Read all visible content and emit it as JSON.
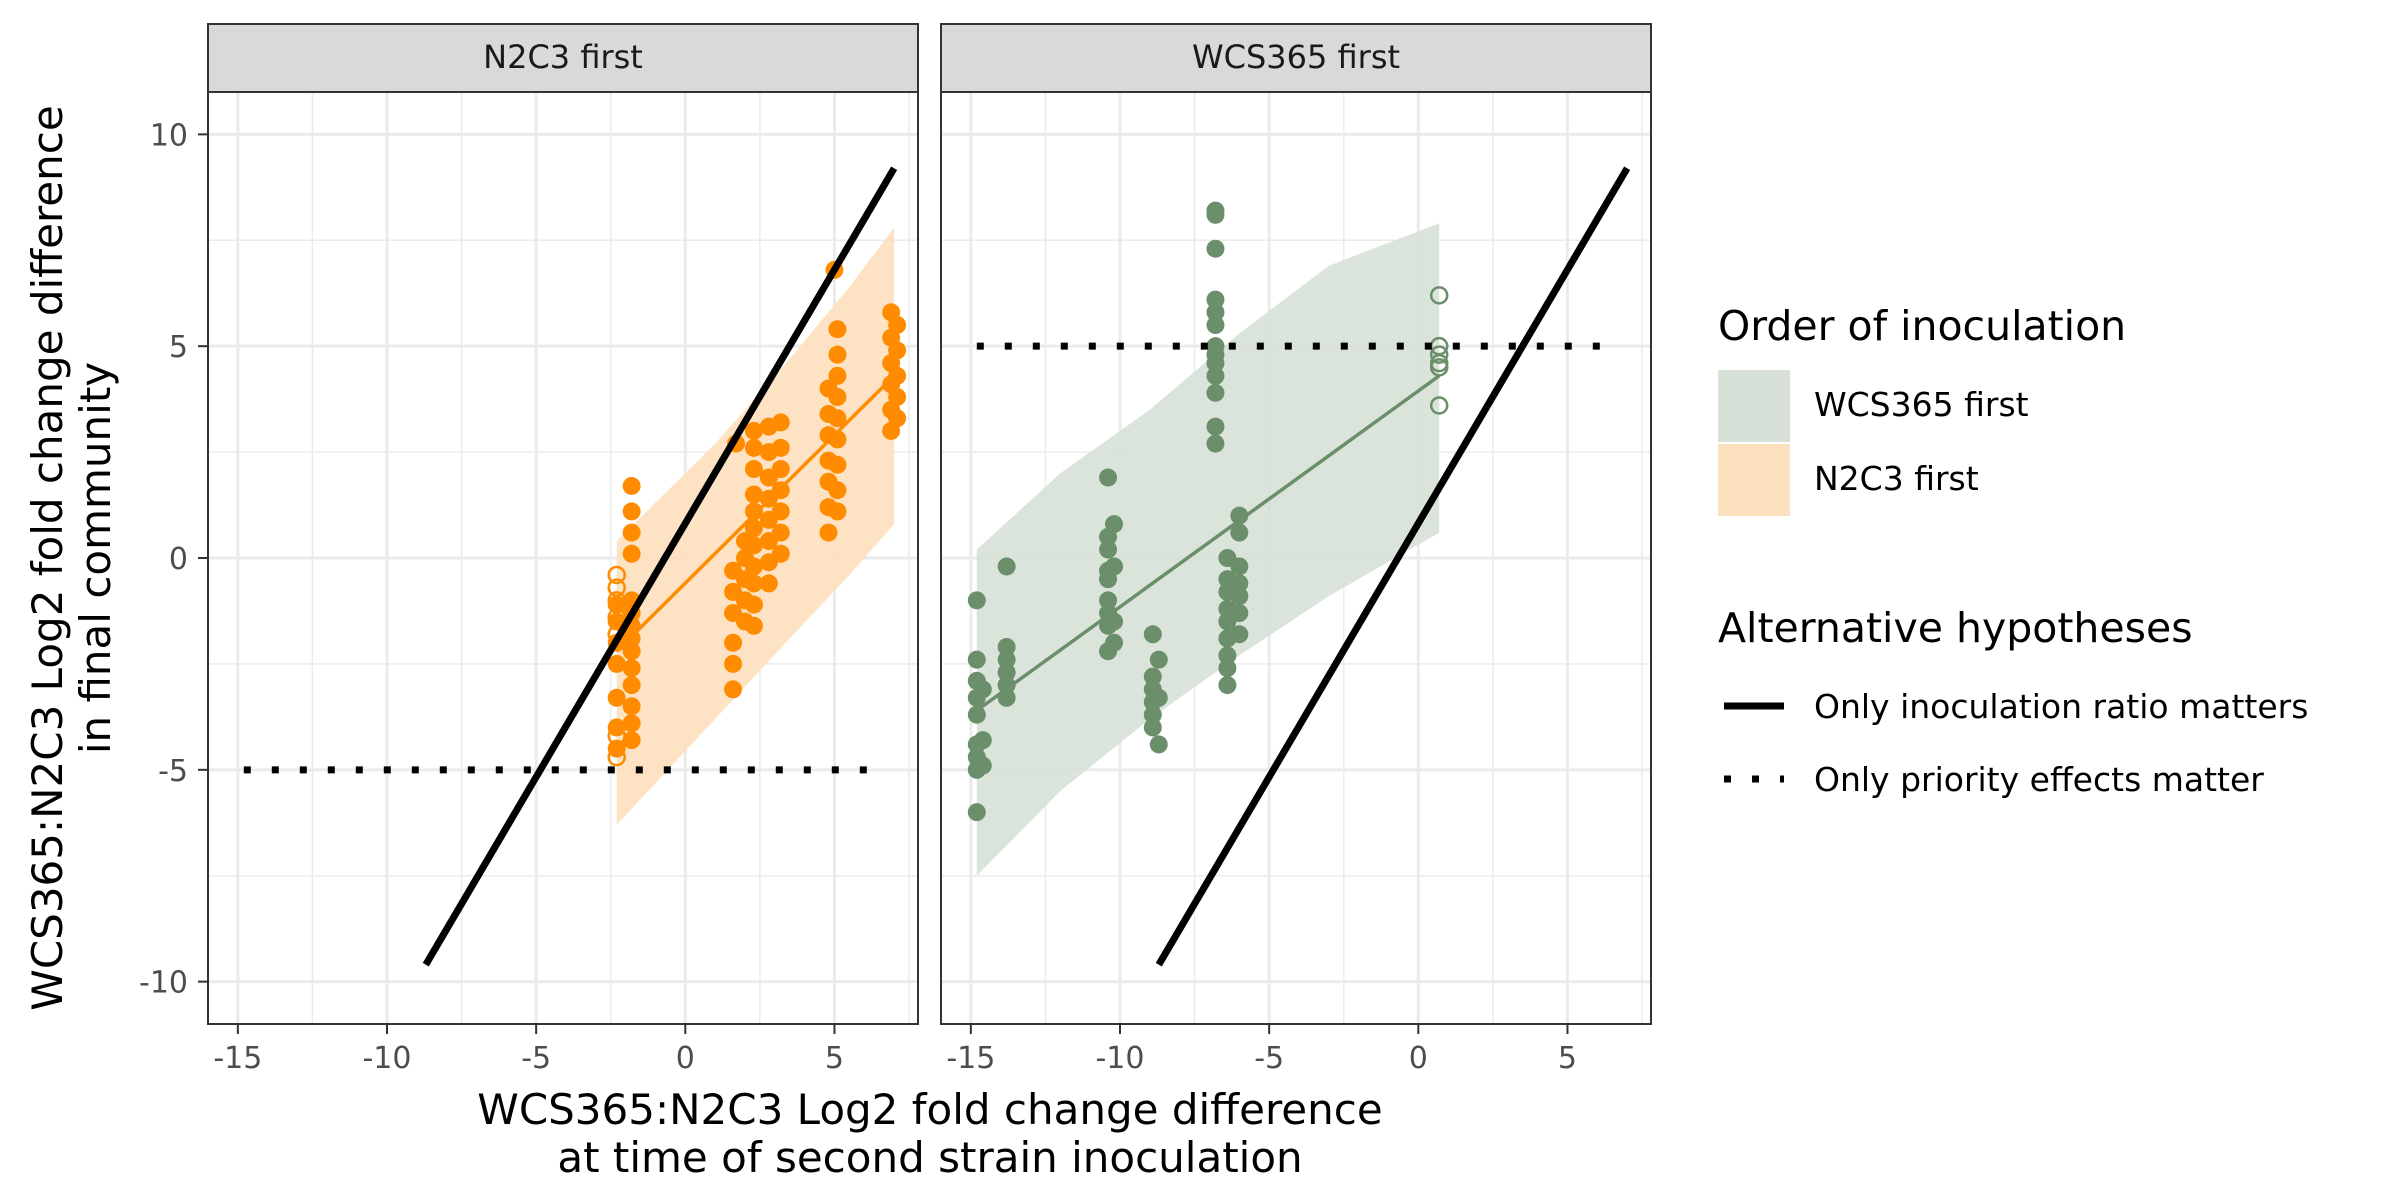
{
  "chart_data": {
    "type": "scatter",
    "facets": [
      "N2C3 first",
      "WCS365 first"
    ],
    "xlabel": [
      "WCS365:N2C3 Log2 fold change difference",
      "at time of second strain inoculation"
    ],
    "ylabel": [
      "WCS365:N2C3 Log2 fold change difference",
      "in final community"
    ],
    "xlim": [
      -16,
      7.8
    ],
    "ylim": [
      -11,
      11
    ],
    "x_ticks": [
      -15,
      -10,
      -5,
      0,
      5
    ],
    "y_ticks": [
      -10,
      -5,
      0,
      5,
      10
    ],
    "x_tick_labels": [
      "-15",
      "-10",
      "-5",
      "0",
      "5"
    ],
    "y_tick_labels": [
      "-10",
      "-5",
      "0",
      "5",
      "10"
    ],
    "grid": true,
    "legend_position": "right",
    "legends": [
      {
        "title": "Order of inoculation",
        "items": [
          {
            "label": "WCS365 first",
            "color": "#d7e1d7"
          },
          {
            "label": "N2C3 first",
            "color": "#fde0bd"
          }
        ]
      },
      {
        "title": "Alternative hypotheses",
        "items": [
          {
            "label": "Only inoculation ratio matters",
            "style": "solid"
          },
          {
            "label": "Only priority effects matter",
            "style": "dotted"
          }
        ]
      }
    ],
    "colors": {
      "N2C3 first": "#ff8c00",
      "WCS365 first": "#6b8e6b",
      "ribbon_N2C3": "#fde0bd",
      "ribbon_WCS365": "#d7e1d7",
      "hypothesis": "#000000"
    },
    "panels": [
      {
        "facet": "N2C3 first",
        "color": "#ff8c00",
        "ribbon_color": "#fde0bd",
        "ratio_line": [
          [
            -8.7,
            -9.6
          ],
          [
            7,
            9.2
          ]
        ],
        "priority_line": {
          "y": -5,
          "x": [
            -14.8,
            6.3
          ]
        },
        "fit_line": [
          [
            -2.3,
            -2.2
          ],
          [
            7,
            4.3
          ]
        ],
        "ribbon": [
          [
            -2.3,
            -6.3,
            0.4
          ],
          [
            1,
            -3.8,
            2.7
          ],
          [
            3.5,
            -1.9,
            4.7
          ],
          [
            5.5,
            -0.4,
            6.4
          ],
          [
            7,
            0.8,
            7.8
          ]
        ],
        "points_filled": [
          [
            5,
            6.8
          ],
          [
            1.7,
            2.7
          ],
          [
            -2.3,
            -1.1
          ],
          [
            -2.3,
            -1.5
          ],
          [
            -2.3,
            -2.0
          ],
          [
            -2.3,
            -2.5
          ],
          [
            -2.3,
            -3.3
          ],
          [
            -2.3,
            -4.0
          ],
          [
            -2.3,
            -4.5
          ],
          [
            -1.8,
            1.7
          ],
          [
            -1.8,
            1.1
          ],
          [
            -1.8,
            0.6
          ],
          [
            -1.8,
            0.1
          ],
          [
            -1.8,
            -1.0
          ],
          [
            -1.8,
            -1.3
          ],
          [
            -1.8,
            -1.6
          ],
          [
            -1.8,
            -1.9
          ],
          [
            -1.8,
            -2.2
          ],
          [
            -1.8,
            -2.6
          ],
          [
            -1.8,
            -3.0
          ],
          [
            -1.8,
            -3.5
          ],
          [
            -1.8,
            -3.9
          ],
          [
            -1.8,
            -4.3
          ],
          [
            1.6,
            -0.3
          ],
          [
            1.6,
            -0.8
          ],
          [
            1.6,
            -1.3
          ],
          [
            1.6,
            -2.0
          ],
          [
            1.6,
            -2.5
          ],
          [
            1.6,
            -3.1
          ],
          [
            2.0,
            0.4
          ],
          [
            2.0,
            0.0
          ],
          [
            2.0,
            -0.5
          ],
          [
            2.0,
            -1.0
          ],
          [
            2.0,
            -1.5
          ],
          [
            2.3,
            3.0
          ],
          [
            2.3,
            2.6
          ],
          [
            2.3,
            2.1
          ],
          [
            2.3,
            1.5
          ],
          [
            2.3,
            1.1
          ],
          [
            2.3,
            0.7
          ],
          [
            2.3,
            0.3
          ],
          [
            2.3,
            -0.2
          ],
          [
            2.3,
            -0.6
          ],
          [
            2.3,
            -1.1
          ],
          [
            2.3,
            -1.6
          ],
          [
            2.8,
            3.1
          ],
          [
            2.8,
            2.5
          ],
          [
            2.8,
            1.9
          ],
          [
            2.8,
            1.4
          ],
          [
            2.8,
            0.9
          ],
          [
            2.8,
            0.4
          ],
          [
            2.8,
            -0.1
          ],
          [
            2.8,
            -0.6
          ],
          [
            3.2,
            3.2
          ],
          [
            3.2,
            2.6
          ],
          [
            3.2,
            2.1
          ],
          [
            3.2,
            1.6
          ],
          [
            3.2,
            1.1
          ],
          [
            3.2,
            0.6
          ],
          [
            3.2,
            0.1
          ],
          [
            4.8,
            4.0
          ],
          [
            4.8,
            3.4
          ],
          [
            4.8,
            2.9
          ],
          [
            4.8,
            2.3
          ],
          [
            4.8,
            1.8
          ],
          [
            4.8,
            1.2
          ],
          [
            4.8,
            0.6
          ],
          [
            5.1,
            5.4
          ],
          [
            5.1,
            4.8
          ],
          [
            5.1,
            4.3
          ],
          [
            5.1,
            3.8
          ],
          [
            5.1,
            3.3
          ],
          [
            5.1,
            2.8
          ],
          [
            5.1,
            2.2
          ],
          [
            5.1,
            1.6
          ],
          [
            5.1,
            1.1
          ],
          [
            6.9,
            5.8
          ],
          [
            6.9,
            5.2
          ],
          [
            6.9,
            4.6
          ],
          [
            6.9,
            4.1
          ],
          [
            6.9,
            3.5
          ],
          [
            6.9,
            3.0
          ],
          [
            7.1,
            5.5
          ],
          [
            7.1,
            4.9
          ],
          [
            7.1,
            4.3
          ],
          [
            7.1,
            3.8
          ],
          [
            7.1,
            3.3
          ]
        ],
        "points_open": [
          [
            -2.3,
            -0.4
          ],
          [
            -2.3,
            -0.7
          ],
          [
            -2.3,
            -1.0
          ],
          [
            -2.3,
            -1.4
          ],
          [
            -2.3,
            -1.8
          ],
          [
            -2.3,
            -4.2
          ],
          [
            -2.3,
            -4.7
          ]
        ]
      },
      {
        "facet": "WCS365 first",
        "color": "#6b8e6b",
        "ribbon_color": "#d7e1d7",
        "ratio_line": [
          [
            -8.7,
            -9.6
          ],
          [
            7,
            9.2
          ]
        ],
        "priority_line": {
          "y": 5,
          "x": [
            -14.8,
            6.3
          ]
        },
        "fit_line": [
          [
            -14.8,
            -3.6
          ],
          [
            0.7,
            4.3
          ]
        ],
        "ribbon": [
          [
            -14.8,
            -7.5,
            0.2
          ],
          [
            -12,
            -5.5,
            2.0
          ],
          [
            -9,
            -3.8,
            3.5
          ],
          [
            -6,
            -2.3,
            5.3
          ],
          [
            -3,
            -0.9,
            6.9
          ],
          [
            0.7,
            0.6,
            7.9
          ]
        ],
        "points_filled": [
          [
            -6.8,
            8.2
          ],
          [
            -6.8,
            8.1
          ],
          [
            -6.8,
            7.3
          ],
          [
            -6.8,
            6.1
          ],
          [
            -6.8,
            5.8
          ],
          [
            -6.8,
            5.5
          ],
          [
            -6.8,
            5.0
          ],
          [
            -6.8,
            4.8
          ],
          [
            -6.8,
            4.6
          ],
          [
            -6.8,
            4.3
          ],
          [
            -6.8,
            3.9
          ],
          [
            -6.8,
            3.1
          ],
          [
            -6.8,
            2.7
          ],
          [
            -14.8,
            -1.0
          ],
          [
            -14.8,
            -2.4
          ],
          [
            -14.8,
            -2.9
          ],
          [
            -14.8,
            -3.3
          ],
          [
            -14.8,
            -3.7
          ],
          [
            -14.8,
            -4.4
          ],
          [
            -14.8,
            -4.7
          ],
          [
            -14.8,
            -5.0
          ],
          [
            -14.8,
            -6.0
          ],
          [
            -14.6,
            -3.1
          ],
          [
            -14.6,
            -4.3
          ],
          [
            -14.6,
            -4.9
          ],
          [
            -13.8,
            -0.2
          ],
          [
            -13.8,
            -2.1
          ],
          [
            -13.8,
            -2.4
          ],
          [
            -13.8,
            -2.7
          ],
          [
            -13.8,
            -3.0
          ],
          [
            -13.8,
            -3.3
          ],
          [
            -10.4,
            1.9
          ],
          [
            -10.4,
            0.5
          ],
          [
            -10.4,
            0.2
          ],
          [
            -10.4,
            -0.3
          ],
          [
            -10.4,
            -0.5
          ],
          [
            -10.4,
            -1.0
          ],
          [
            -10.4,
            -1.3
          ],
          [
            -10.4,
            -1.6
          ],
          [
            -10.4,
            -2.2
          ],
          [
            -10.2,
            0.8
          ],
          [
            -10.2,
            -0.2
          ],
          [
            -10.2,
            -1.5
          ],
          [
            -10.2,
            -2.0
          ],
          [
            -8.9,
            -1.8
          ],
          [
            -8.9,
            -2.8
          ],
          [
            -8.9,
            -3.1
          ],
          [
            -8.9,
            -3.4
          ],
          [
            -8.9,
            -3.7
          ],
          [
            -8.9,
            -4.0
          ],
          [
            -8.7,
            -2.4
          ],
          [
            -8.7,
            -3.3
          ],
          [
            -8.7,
            -4.4
          ],
          [
            -6.4,
            0.0
          ],
          [
            -6.4,
            -0.5
          ],
          [
            -6.4,
            -0.8
          ],
          [
            -6.4,
            -1.2
          ],
          [
            -6.4,
            -1.5
          ],
          [
            -6.4,
            -1.9
          ],
          [
            -6.4,
            -2.3
          ],
          [
            -6.4,
            -2.6
          ],
          [
            -6.4,
            -3.0
          ],
          [
            -6.0,
            1.0
          ],
          [
            -6.0,
            0.6
          ],
          [
            -6.0,
            -0.2
          ],
          [
            -6.0,
            -0.6
          ],
          [
            -6.0,
            -0.9
          ],
          [
            -6.0,
            -1.3
          ],
          [
            -6.0,
            -1.8
          ]
        ],
        "points_open": [
          [
            0.7,
            6.2
          ],
          [
            0.7,
            5.0
          ],
          [
            0.7,
            4.8
          ],
          [
            0.7,
            4.6
          ],
          [
            0.7,
            4.5
          ],
          [
            0.7,
            3.6
          ]
        ]
      }
    ]
  }
}
